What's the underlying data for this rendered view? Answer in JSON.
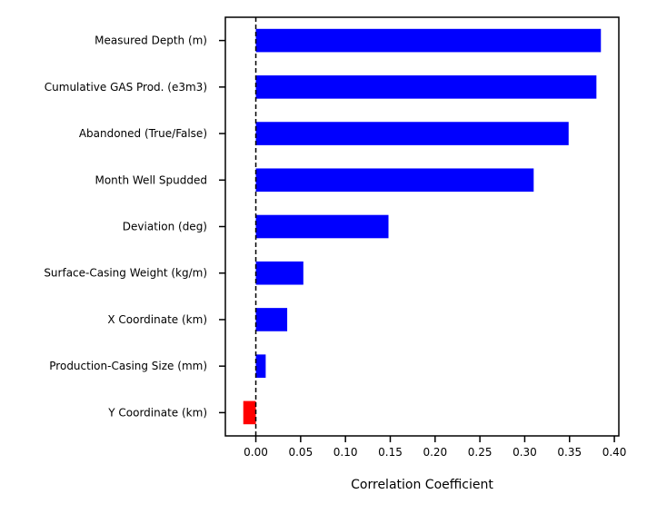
{
  "chart_data": {
    "type": "bar",
    "orientation": "horizontal",
    "title": "",
    "xlabel": "Correlation Coefficient",
    "ylabel": "",
    "categories": [
      "Measured Depth (m)",
      "Cumulative GAS Prod. (e3m3)",
      "Abandoned (True/False)",
      "Month Well Spudded",
      "Deviation (deg)",
      "Surface-Casing Weight (kg/m)",
      "X Coordinate (km)",
      "Production-Casing Size (mm)",
      "Y Coordinate (km)"
    ],
    "values": [
      0.385,
      0.38,
      0.349,
      0.31,
      0.148,
      0.053,
      0.035,
      0.011,
      -0.014
    ],
    "xlim": [
      -0.034,
      0.405
    ],
    "xticks": [
      "0.00",
      "0.05",
      "0.10",
      "0.15",
      "0.20",
      "0.25",
      "0.30",
      "0.35",
      "0.40"
    ],
    "reference_line": {
      "x": 0,
      "style": "dashed"
    },
    "colors": {
      "positive": "#0000ff",
      "negative": "#ff0000"
    },
    "grid": false,
    "legend": "none"
  }
}
